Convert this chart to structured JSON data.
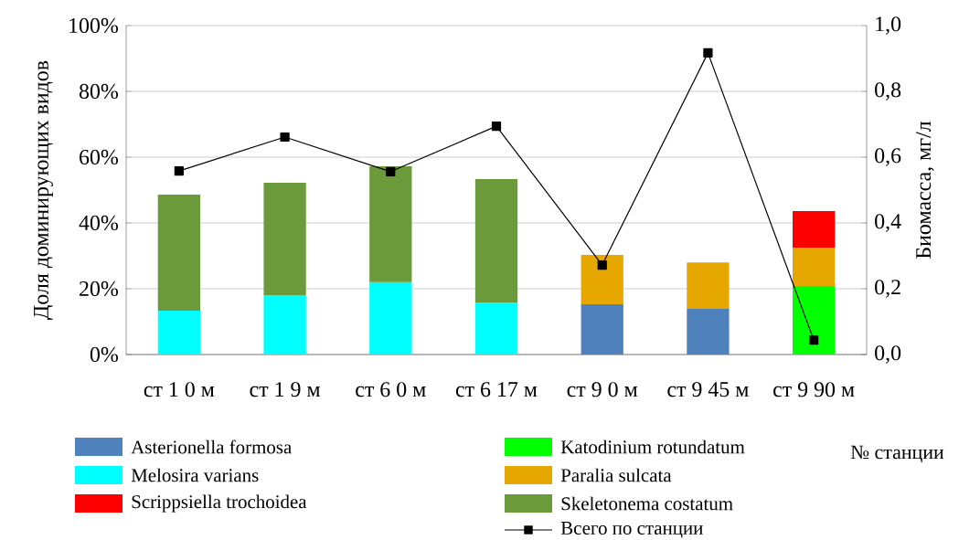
{
  "chart_data": {
    "type": "bar",
    "stacked": true,
    "categories": [
      "ст 1 0 м",
      "ст 1 9 м",
      "ст 6 0 м",
      "ст 6 17 м",
      "ст 9 0 м",
      "ст 9 45 м",
      "ст 9 90 м"
    ],
    "xlabel": "№ станции",
    "ylabel": "Доля доминирующих видов",
    "y2label": "Биомасса, мг/л",
    "series": [
      {
        "name": "Asterionella formosa",
        "color": "#4f81bd",
        "values": [
          null,
          null,
          null,
          null,
          15.3,
          13.9,
          null
        ]
      },
      {
        "name": "Melosira varians",
        "color": "#00ffff",
        "values": [
          13.3,
          18,
          22,
          15.8,
          null,
          null,
          null
        ]
      },
      {
        "name": "Katodinium  rotundatum",
        "color": "#00ff00",
        "values": [
          null,
          null,
          null,
          null,
          null,
          null,
          20.8
        ]
      },
      {
        "name": "Paralia  sulcata",
        "color": "#e6a800",
        "values": [
          null,
          null,
          null,
          null,
          15,
          14.1,
          11.7
        ]
      },
      {
        "name": "Skeletonema  costatum",
        "color": "#6a9a3a",
        "values": [
          35.3,
          34.2,
          35.2,
          37.5,
          null,
          null,
          null
        ]
      },
      {
        "name": "Scrippsiella trochoidea",
        "color": "#ff0000",
        "values": [
          null,
          null,
          null,
          null,
          null,
          null,
          11.1
        ]
      },
      {
        "name": "Всего по станции",
        "type": "line",
        "axis": "y2",
        "color": "#000000",
        "marker": "square",
        "line_style": "solid",
        "values": [
          0.558,
          0.661,
          0.556,
          0.694,
          0.272,
          0.917,
          0.044
        ]
      }
    ],
    "ylim": [
      0,
      100
    ],
    "yticks": [
      {
        "value": 0,
        "label": "0%"
      },
      {
        "value": 20,
        "label": "20%"
      },
      {
        "value": 40,
        "label": "40%"
      },
      {
        "value": 60,
        "label": "60%"
      },
      {
        "value": 80,
        "label": "80%"
      },
      {
        "value": 100,
        "label": "100%"
      }
    ],
    "y2lim": [
      0,
      1
    ],
    "y2ticks": [
      {
        "value": 0,
        "label": "0,0"
      },
      {
        "value": 0.2,
        "label": "0,2"
      },
      {
        "value": 0.4,
        "label": "0,4"
      },
      {
        "value": 0.6,
        "label": "0,6"
      },
      {
        "value": 0.8,
        "label": "0,8"
      },
      {
        "value": 1,
        "label": "1,0"
      }
    ],
    "grid": "y",
    "legend": "bottom"
  }
}
